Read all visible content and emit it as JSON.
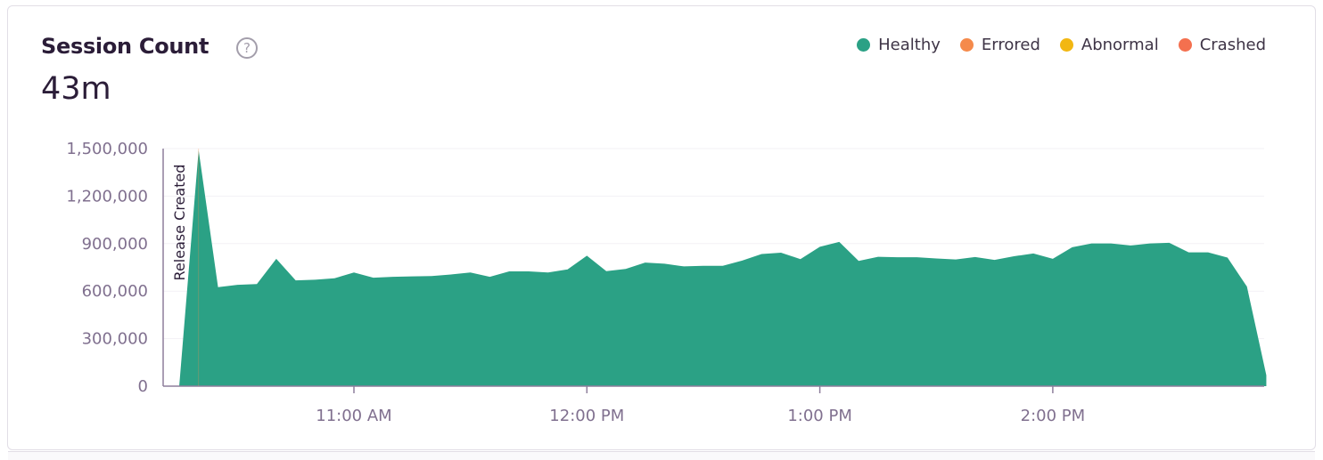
{
  "header": {
    "title": "Session Count",
    "help_icon": "question-circle-icon",
    "total": "43m"
  },
  "legend": [
    {
      "label": "Healthy",
      "color": "#2ba185"
    },
    {
      "label": "Errored",
      "color": "#f58a4b"
    },
    {
      "label": "Abnormal",
      "color": "#f2b712"
    },
    {
      "label": "Crashed",
      "color": "#f4704f"
    }
  ],
  "chart_data": {
    "type": "area",
    "title": "Session Count",
    "xlabel": "",
    "ylabel": "",
    "ylim": [
      0,
      1500000
    ],
    "y_ticks": [
      "0",
      "300,000",
      "600,000",
      "900,000",
      "1,200,000",
      "1,500,000"
    ],
    "y_tick_values": [
      0,
      300000,
      600000,
      900000,
      1200000,
      1500000
    ],
    "x_ticks": [
      "11:00 AM",
      "12:00 PM",
      "1:00 PM",
      "2:00 PM"
    ],
    "grid": true,
    "legend_position": "top-right",
    "annotation": {
      "label": "Release Created",
      "x": "10:20 AM"
    },
    "x": [
      "10:15 AM",
      "10:20 AM",
      "10:25 AM",
      "10:30 AM",
      "10:35 AM",
      "10:40 AM",
      "10:45 AM",
      "10:50 AM",
      "10:55 AM",
      "11:00 AM",
      "11:05 AM",
      "11:10 AM",
      "11:15 AM",
      "11:20 AM",
      "11:25 AM",
      "11:30 AM",
      "11:35 AM",
      "11:40 AM",
      "11:45 AM",
      "11:50 AM",
      "11:55 AM",
      "12:00 PM",
      "12:05 PM",
      "12:10 PM",
      "12:15 PM",
      "12:20 PM",
      "12:25 PM",
      "12:30 PM",
      "12:35 PM",
      "12:40 PM",
      "12:45 PM",
      "12:50 PM",
      "12:55 PM",
      "1:00 PM",
      "1:05 PM",
      "1:10 PM",
      "1:15 PM",
      "1:20 PM",
      "1:25 PM",
      "1:30 PM",
      "1:35 PM",
      "1:40 PM",
      "1:45 PM",
      "1:50 PM",
      "1:55 PM",
      "2:00 PM",
      "2:05 PM",
      "2:10 PM",
      "2:15 PM",
      "2:20 PM",
      "2:25 PM",
      "2:30 PM",
      "2:35 PM",
      "2:40 PM",
      "2:45 PM",
      "2:50 PM",
      "2:55 PM"
    ],
    "series": [
      {
        "name": "Healthy",
        "color": "#2ba185",
        "values": [
          0,
          1490000,
          625000,
          640000,
          645000,
          804000,
          668000,
          672000,
          681000,
          718000,
          685000,
          690000,
          693000,
          695000,
          705000,
          718000,
          690000,
          725000,
          725000,
          718000,
          737000,
          824000,
          726000,
          740000,
          780000,
          773000,
          756000,
          760000,
          760000,
          793000,
          834000,
          843000,
          802000,
          880000,
          911000,
          791000,
          817000,
          814000,
          814000,
          806000,
          800000,
          815000,
          797000,
          820000,
          838000,
          804000,
          877000,
          901000,
          901000,
          888000,
          901000,
          905000,
          845000,
          845000,
          812000,
          629000,
          69000
        ]
      }
    ]
  }
}
